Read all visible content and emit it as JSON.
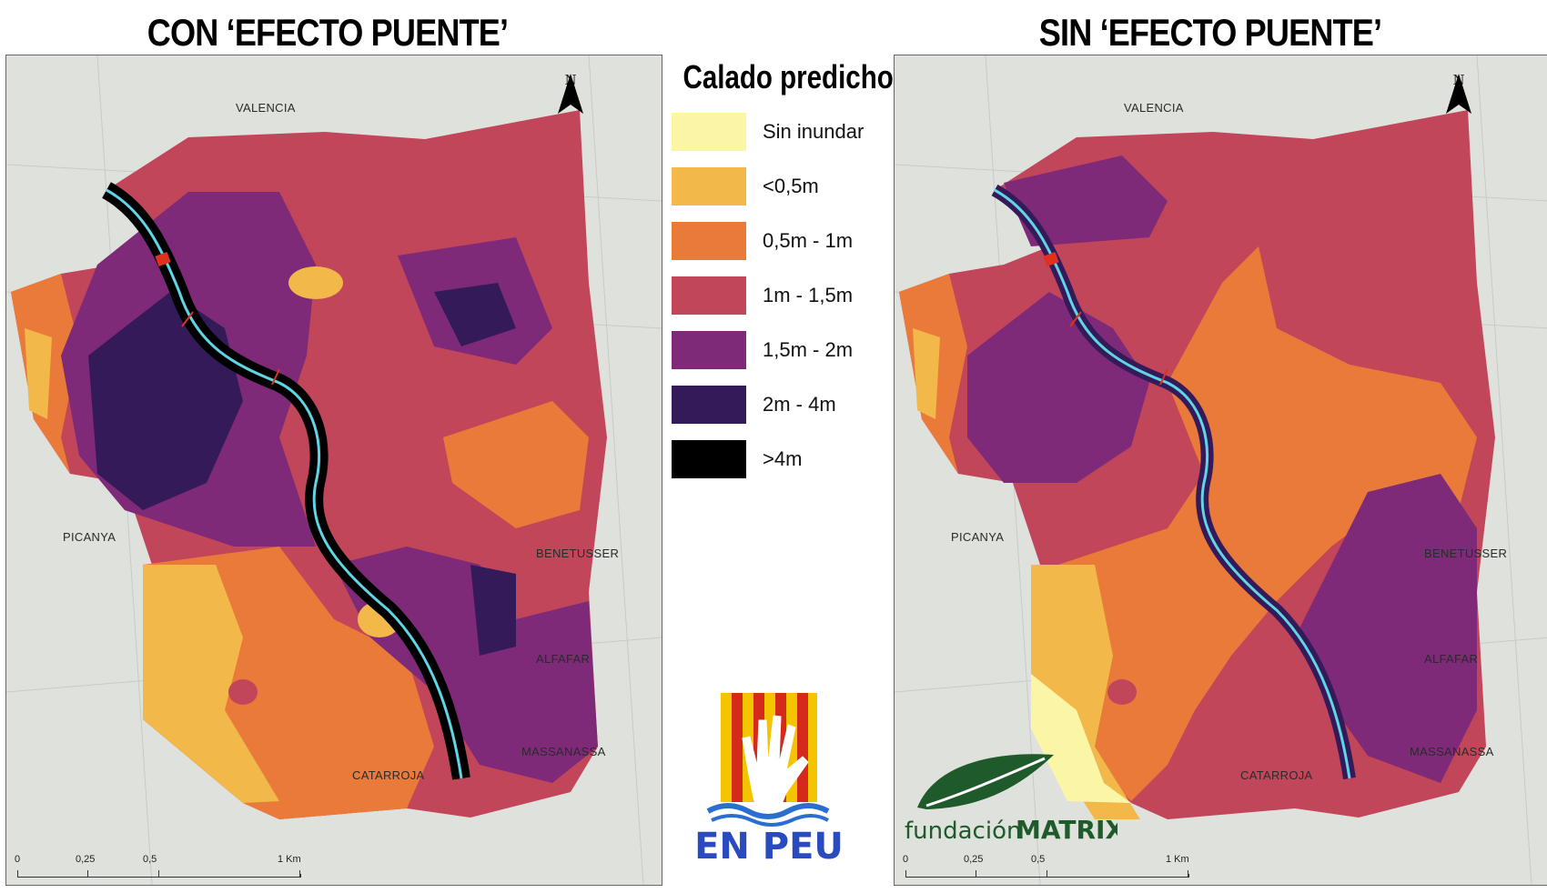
{
  "titles": {
    "left": "CON ‘EFECTO PUENTE’",
    "right": "SIN ‘EFECTO PUENTE’"
  },
  "legend": {
    "title": "Calado predicho",
    "items": [
      {
        "label": "Sin inundar",
        "color": "#fbf6a6"
      },
      {
        "label": "<0,5m",
        "color": "#f2b84a"
      },
      {
        "label": "0,5m - 1m",
        "color": "#ea7a3a"
      },
      {
        "label": "1m - 1,5m",
        "color": "#c1465a"
      },
      {
        "label": "1,5m - 2m",
        "color": "#7e2a78"
      },
      {
        "label": "2m - 4m",
        "color": "#351a5a"
      },
      {
        "label": ">4m",
        "color": "#000000"
      }
    ]
  },
  "places": {
    "valencia": "VALENCIA",
    "picanya": "PICANYA",
    "benetusser": "BENETUSSER",
    "alfafar": "ALFAFAR",
    "massanassa": "MASSANASSA",
    "catarroja": "CATARROJA"
  },
  "north_label": "N",
  "scale": {
    "labels": [
      "0",
      "0,25",
      "0,5",
      "1 Km"
    ],
    "values_km": [
      0,
      0.25,
      0.5,
      1
    ]
  },
  "logos": {
    "enpeu_text": "EN PEU",
    "matrix_prefix": "fundación",
    "matrix_name": "MATRIX"
  },
  "colors": {
    "river": "#5fd6e6",
    "bridge": "#e0301e"
  }
}
